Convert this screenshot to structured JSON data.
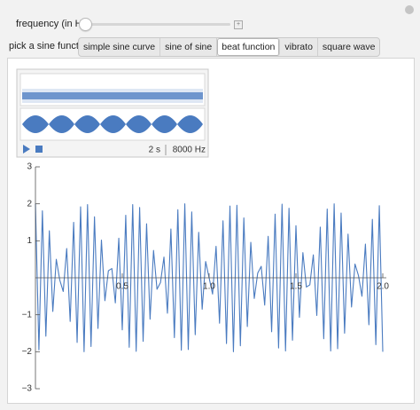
{
  "controls": {
    "slider_label": "frequency (in Hz)",
    "function_label": "pick a sine function",
    "functions": [
      "simple sine curve",
      "sine of sine",
      "beat function",
      "vibrato",
      "square wave"
    ]
  },
  "sound": {
    "duration": "2 s",
    "sample_rate": "8000 Hz"
  },
  "chart_data": {
    "type": "line",
    "x": [
      0,
      0.02,
      0.04,
      0.06,
      0.08,
      0.1,
      0.12,
      0.14,
      0.16,
      0.18,
      0.2,
      0.22,
      0.24,
      0.26,
      0.28,
      0.3,
      0.32,
      0.34,
      0.36,
      0.38,
      0.4,
      0.42,
      0.44,
      0.46,
      0.48,
      0.5,
      0.52,
      0.54,
      0.56,
      0.58,
      0.6,
      0.62,
      0.64,
      0.66,
      0.68,
      0.7,
      0.72,
      0.74,
      0.76,
      0.78,
      0.8,
      0.82,
      0.84,
      0.86,
      0.88,
      0.9,
      0.92,
      0.94,
      0.96,
      0.98,
      1,
      1.02,
      1.04,
      1.06,
      1.08,
      1.1,
      1.12,
      1.14,
      1.16,
      1.18,
      1.2,
      1.22,
      1.24,
      1.26,
      1.28,
      1.3,
      1.32,
      1.34,
      1.36,
      1.38,
      1.4,
      1.42,
      1.44,
      1.46,
      1.48,
      1.5,
      1.52,
      1.54,
      1.56,
      1.58,
      1.6,
      1.62,
      1.64,
      1.66,
      1.68,
      1.7,
      1.72,
      1.74,
      1.76,
      1.78,
      1.8,
      1.82,
      1.84,
      1.86,
      1.88,
      1.9,
      1.92,
      1.94,
      1.96,
      1.98,
      2
    ],
    "series": [
      {
        "color": "#4a7bc0",
        "values": [
          2,
          -1.95,
          1.81,
          -1.58,
          1.27,
          -0.91,
          0.5,
          -0.06,
          -0.37,
          0.79,
          -1.18,
          1.5,
          -1.75,
          1.92,
          -2,
          1.98,
          -1.86,
          1.65,
          -1.37,
          1.02,
          -0.62,
          0.19,
          0.25,
          -0.68,
          1.07,
          -1.41,
          1.69,
          -1.88,
          1.98,
          -1.99,
          1.9,
          -1.72,
          1.46,
          -1.12,
          0.74,
          -0.31,
          -0.13,
          0.56,
          -0.96,
          1.32,
          -1.62,
          1.84,
          -1.96,
          2,
          -1.94,
          1.78,
          -1.54,
          1.23,
          -0.85,
          0.44,
          0,
          -0.44,
          0.85,
          -1.23,
          1.54,
          -1.78,
          1.94,
          -2,
          1.96,
          -1.84,
          1.62,
          -1.32,
          0.96,
          -0.56,
          0.13,
          0.31,
          -0.74,
          1.12,
          -1.46,
          1.72,
          -1.9,
          1.99,
          -1.98,
          1.88,
          -1.69,
          1.41,
          -1.07,
          0.68,
          -0.25,
          -0.19,
          0.62,
          -1.02,
          1.37,
          -1.65,
          1.86,
          -1.98,
          2,
          -1.92,
          1.75,
          -1.5,
          1.18,
          -0.79,
          0.37,
          0.06,
          -0.5,
          0.91,
          -1.27,
          1.58,
          -1.81,
          1.95,
          -2
        ]
      }
    ],
    "xlim": [
      0,
      2
    ],
    "xticks": [
      0.5,
      {
        "value": 1,
        "label": "1.0"
      },
      1.5,
      {
        "value": 2,
        "label": "2.0"
      }
    ],
    "ylim": [
      -3,
      3
    ],
    "yticks": [
      {
        "value": -3,
        "label": "−3"
      },
      {
        "value": -2,
        "label": "−2"
      },
      {
        "value": -1,
        "label": "−1"
      },
      1,
      2,
      3
    ]
  }
}
